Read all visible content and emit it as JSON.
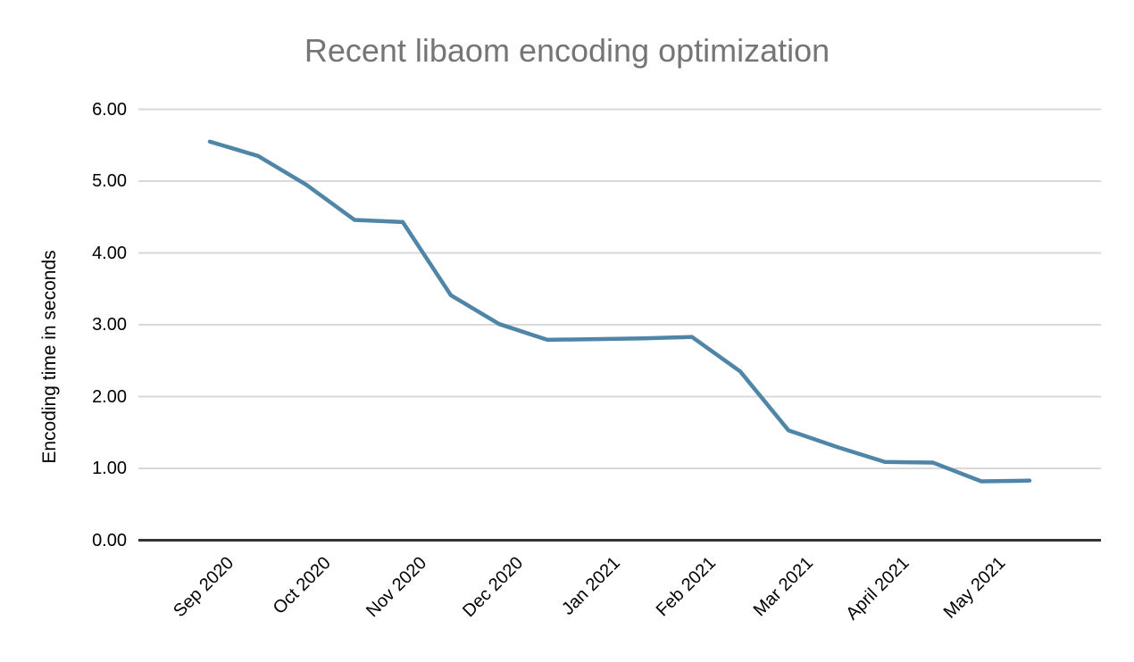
{
  "colors": {
    "line": "#4f86a8",
    "title_text": "#757575",
    "gridline": "#d9d9d9",
    "axis_line": "#333333",
    "tick_text": "#000000"
  },
  "chart_data": {
    "type": "line",
    "title": "Recent libaom encoding optimization",
    "xlabel": "",
    "ylabel": "Encoding time in seconds",
    "ylim": [
      0,
      6
    ],
    "yticks": [
      "0.00",
      "1.00",
      "2.00",
      "3.00",
      "4.00",
      "5.00",
      "6.00"
    ],
    "categories": [
      "Sep 2020",
      "Oct 2020",
      "Nov 2020",
      "Dec 2020",
      "Jan 2021",
      "Feb 2021",
      "Mar 2021",
      "April 2021",
      "May 2021"
    ],
    "sampling_note": "two data points per month (start and mid-month)",
    "grid": "horizontal",
    "legend": "none",
    "series": [
      {
        "name": "Encoding time",
        "x_months_from_sep_2020": [
          0,
          0.5,
          1,
          1.5,
          2,
          2.5,
          3,
          3.5,
          4,
          4.5,
          5,
          5.5,
          6,
          6.5,
          7,
          7.5,
          8,
          8.5
        ],
        "values": [
          5.55,
          5.35,
          4.95,
          4.46,
          4.43,
          3.41,
          3.01,
          2.79,
          2.8,
          2.81,
          2.83,
          2.35,
          1.53,
          1.3,
          1.09,
          1.08,
          0.82,
          0.83
        ]
      }
    ]
  }
}
